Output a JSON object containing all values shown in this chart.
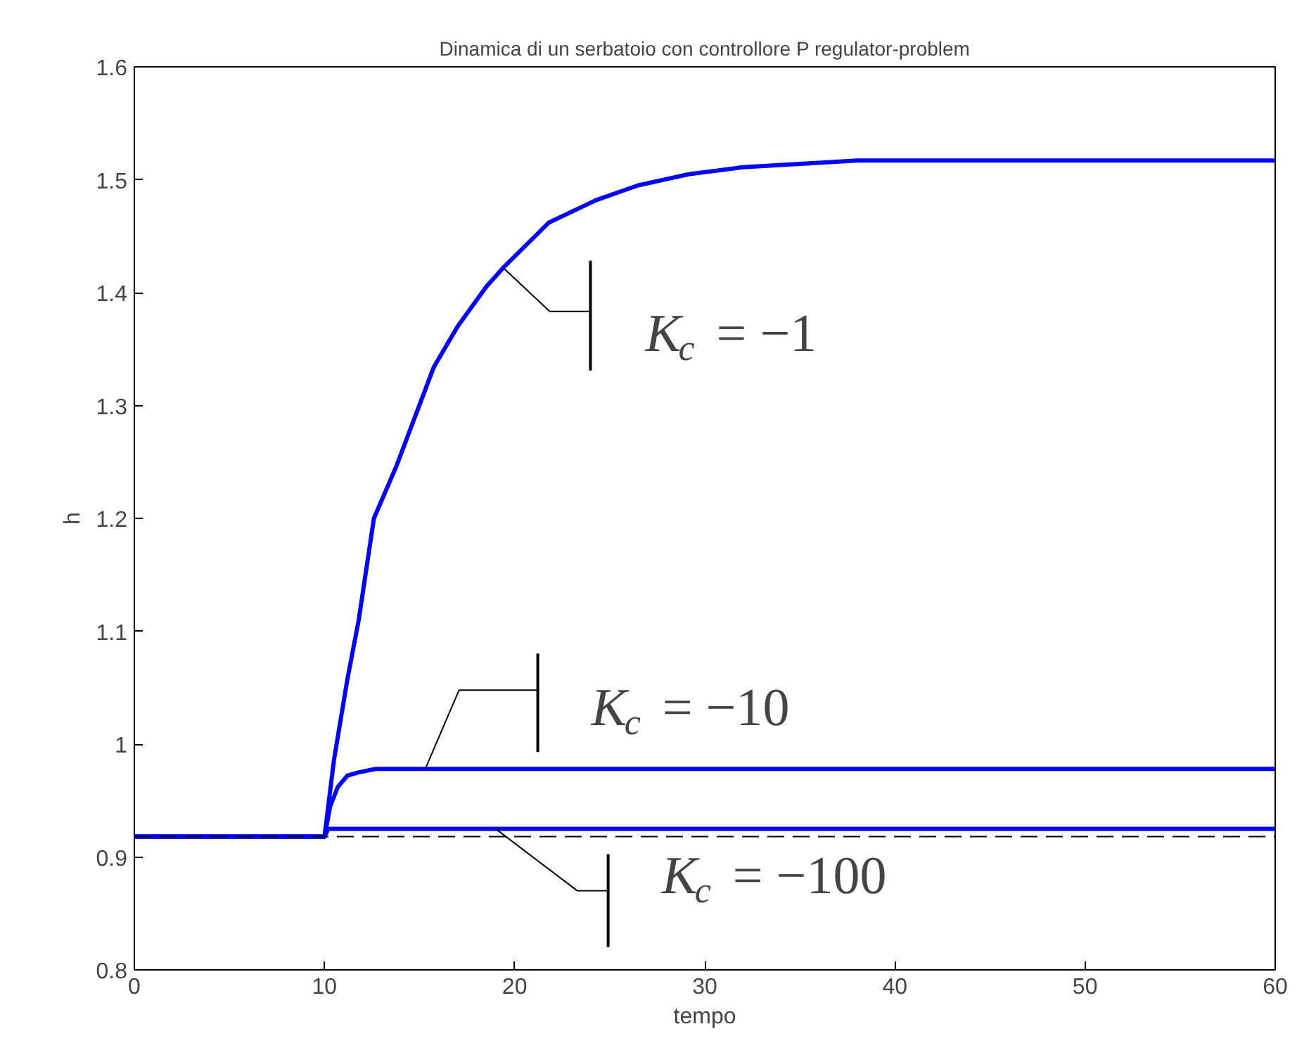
{
  "chart_data": {
    "type": "line",
    "title": "Dinamica di un serbatoio con controllore P regulator-problem",
    "xlabel": "tempo",
    "ylabel": "h",
    "xlim": [
      0,
      60
    ],
    "ylim": [
      0.8,
      1.6
    ],
    "xticks": [
      0,
      10,
      20,
      30,
      40,
      50,
      60
    ],
    "yticks": [
      0.8,
      0.9,
      1,
      1.1,
      1.2,
      1.3,
      1.4,
      1.5,
      1.6
    ],
    "line_style": "solid",
    "series": [
      {
        "color": "#0000ff",
        "x": [
          0,
          10,
          10.5,
          11.2,
          11.8,
          12.6,
          13.8,
          15.75,
          17,
          18.5,
          19.4,
          21.8,
          24.3,
          26.5,
          29.2,
          32,
          35,
          38,
          60
        ],
        "values": [
          0.918,
          0.918,
          0.986,
          1.057,
          1.11,
          1.2,
          1.247,
          1.334,
          1.37,
          1.405,
          1.422,
          1.462,
          1.482,
          1.495,
          1.505,
          1.511,
          1.514,
          1.517,
          1.517
        ]
      },
      {
        "color": "#0000ff",
        "x": [
          0,
          10,
          10.3,
          10.7,
          11.2,
          11.8,
          12.7,
          60
        ],
        "values": [
          0.918,
          0.918,
          0.945,
          0.962,
          0.972,
          0.975,
          0.978,
          0.978
        ]
      },
      {
        "color": "#0000ff",
        "x": [
          0,
          10,
          10.2,
          60
        ],
        "values": [
          0.918,
          0.918,
          0.925,
          0.925
        ]
      }
    ],
    "ref_lines": [
      {
        "axis": "y",
        "value": 0.918,
        "color": "#000000",
        "line_style": "dashed"
      }
    ],
    "annotations": [
      {
        "text": "K$_{c}$ = −1",
        "x": 19.4,
        "y": 1.422
      },
      {
        "text": "K$_{c}$ = −10",
        "x": 15.3,
        "y": 0.978
      },
      {
        "text": "K$_{c}$ = −100",
        "x": 19.0,
        "y": 0.925
      }
    ]
  }
}
